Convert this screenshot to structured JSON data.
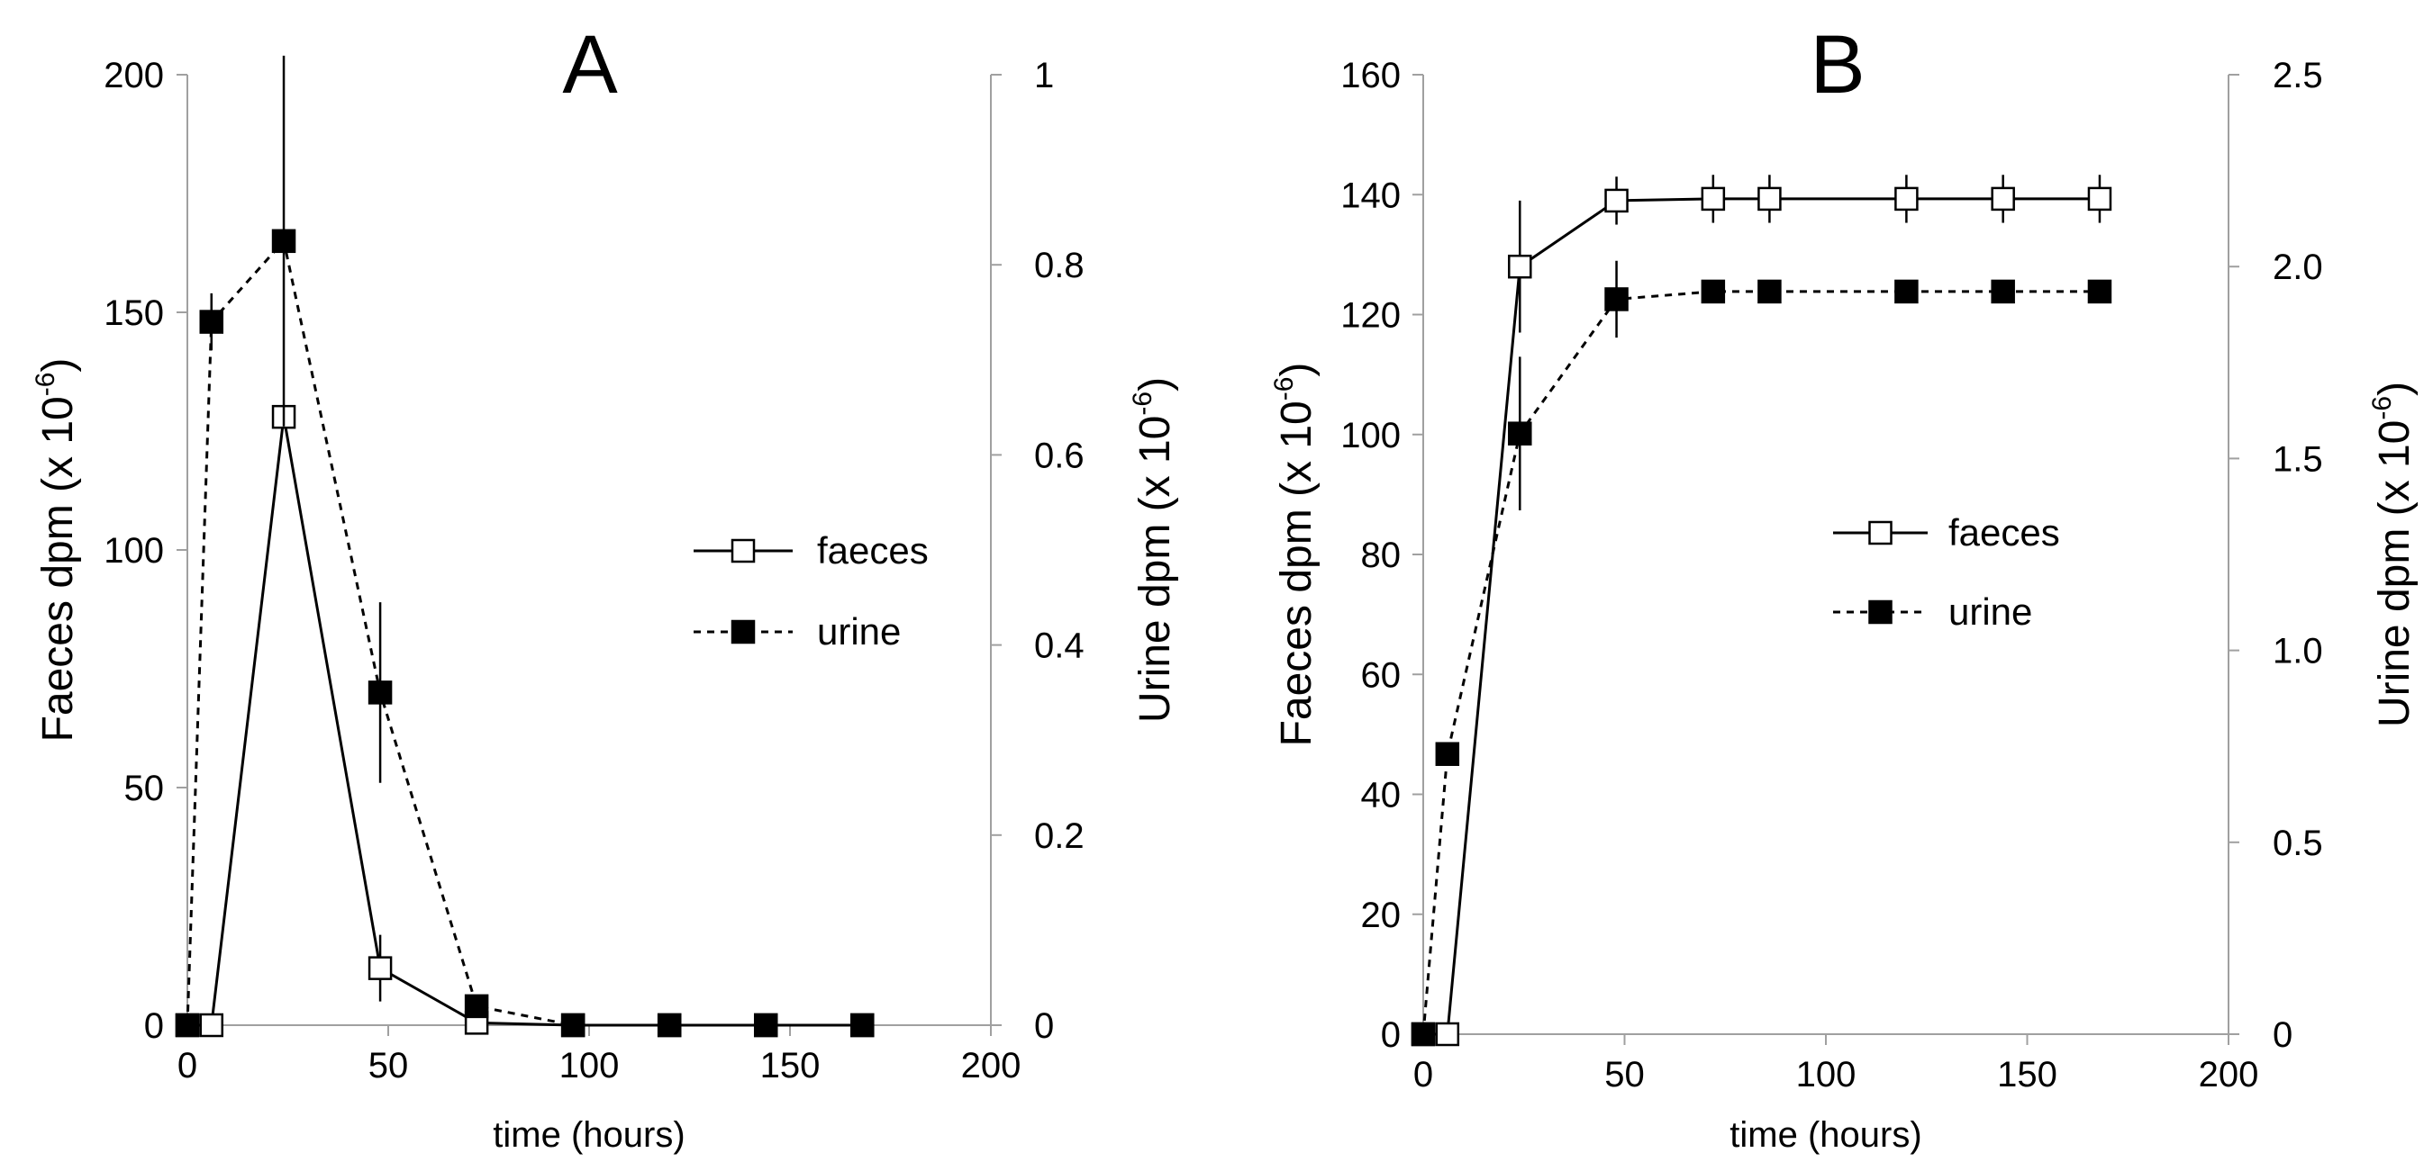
{
  "chart_data": [
    {
      "type": "line",
      "panel_label": "A",
      "xlabel": "time (hours)",
      "xlim": [
        0,
        200
      ],
      "xticks": [
        0,
        50,
        100,
        150,
        200
      ],
      "ylabel_left": {
        "main": "Faeces dpm (x 10",
        "sup": "-6",
        "end": ")"
      },
      "ylim_left": [
        0,
        200
      ],
      "yticks_left": [
        0,
        50,
        100,
        150,
        200
      ],
      "ytick_labels_left": [
        "0",
        "50",
        "100",
        "150",
        "200"
      ],
      "ylabel_right": {
        "main": "Urine dpm (x 10",
        "sup": "-6",
        "end": ")"
      },
      "ylim_right": [
        0,
        1
      ],
      "yticks_right": [
        0,
        0.2,
        0.4,
        0.6,
        0.8,
        1
      ],
      "ytick_labels_right": [
        "0",
        "0.2",
        "0.4",
        "0.6",
        "0.8",
        "1"
      ],
      "legend_position": "center-right",
      "series": [
        {
          "name": "faeces",
          "axis": "left",
          "style": "solid",
          "marker": "open-square",
          "x": [
            0,
            6,
            24,
            48,
            72,
            96,
            120,
            144,
            168
          ],
          "y": [
            0,
            0,
            128,
            12,
            0.5,
            0,
            0,
            0,
            0
          ],
          "err": [
            0,
            0,
            0,
            7,
            0,
            0,
            0,
            0,
            0
          ]
        },
        {
          "name": "urine",
          "axis": "right",
          "style": "dashed",
          "marker": "filled-square",
          "x": [
            0,
            6,
            24,
            48,
            72,
            96,
            120,
            144,
            168
          ],
          "y": [
            0,
            0.74,
            0.825,
            0.35,
            0.02,
            0,
            0,
            0,
            0
          ],
          "err": [
            0,
            0.03,
            0.195,
            0.095,
            0,
            0,
            0,
            0,
            0
          ]
        }
      ]
    },
    {
      "type": "line",
      "panel_label": "B",
      "xlabel": "time (hours)",
      "xlim": [
        0,
        200
      ],
      "xticks": [
        0,
        50,
        100,
        150,
        200
      ],
      "ylabel_left": {
        "main": "Faeces dpm (x 10",
        "sup": "-6",
        "end": ")"
      },
      "ylim_left": [
        0,
        160
      ],
      "yticks_left": [
        0,
        20,
        40,
        60,
        80,
        100,
        120,
        140,
        160
      ],
      "ytick_labels_left": [
        "0",
        "20",
        "40",
        "60",
        "80",
        "100",
        "120",
        "140",
        "160"
      ],
      "ylabel_right": {
        "main": "Urine dpm (x 10",
        "sup": "-6",
        "end": ")"
      },
      "ylim_right": [
        0,
        2.5
      ],
      "yticks_right": [
        0,
        0.5,
        1.0,
        1.5,
        2.0,
        2.5
      ],
      "ytick_labels_right": [
        "0",
        "0.5",
        "1.0",
        "1.5",
        "2.0",
        "2.5"
      ],
      "legend_position": "center-right",
      "series": [
        {
          "name": "faeces",
          "axis": "left",
          "style": "solid",
          "marker": "open-square",
          "x": [
            0,
            6,
            24,
            48,
            72,
            86,
            120,
            144,
            168
          ],
          "y": [
            0,
            0,
            128,
            139,
            139.3,
            139.3,
            139.3,
            139.3,
            139.3
          ],
          "err": [
            0,
            0,
            11,
            4,
            4,
            4,
            4,
            4,
            4
          ]
        },
        {
          "name": "urine",
          "axis": "right",
          "style": "dashed",
          "marker": "filled-square",
          "x": [
            0,
            6,
            24,
            48,
            72,
            86,
            120,
            144,
            168
          ],
          "y": [
            0,
            0.73,
            1.565,
            1.915,
            1.935,
            1.935,
            1.935,
            1.935,
            1.935
          ],
          "err": [
            0,
            0,
            0.2,
            0.1,
            0,
            0,
            0,
            0,
            0
          ]
        }
      ]
    }
  ]
}
